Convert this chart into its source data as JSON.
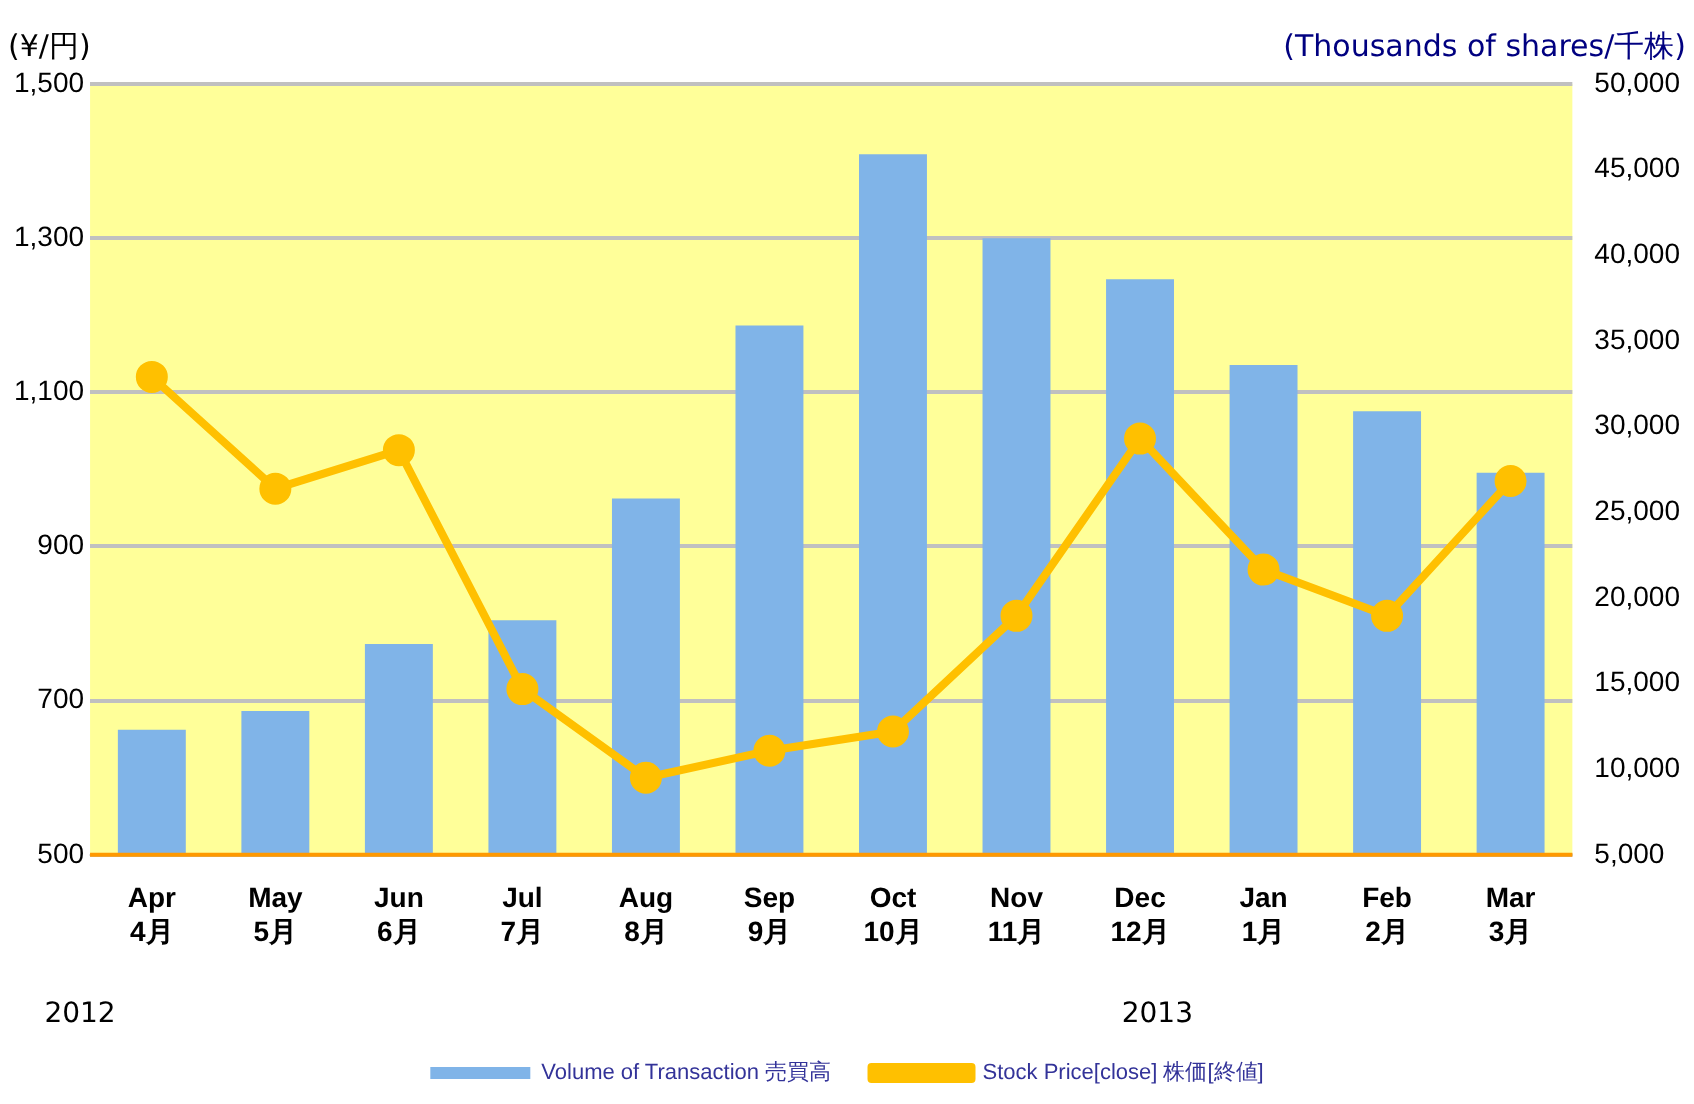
{
  "chart_data": {
    "type": "bar",
    "ylabel": "(¥/円)",
    "y2label": "(Thousands of shares/千株)",
    "categories": [
      "Apr\n4月",
      "May\n5月",
      "Jun\n6月",
      "Jul\n7月",
      "Aug\n8月",
      "Sep\n9月",
      "Oct\n10月",
      "Nov\n11月",
      "Dec\n12月",
      "Jan\n1月",
      "Feb\n2月",
      "Mar\n3月"
    ],
    "series": [
      {
        "name": "Volume of Transaction 売買高",
        "axis": "y2",
        "color": "#80b4e8",
        "values": [
          12300,
          13400,
          17300,
          18700,
          25800,
          35900,
          45900,
          41000,
          38600,
          33600,
          30900,
          27300
        ]
      },
      {
        "name": "Stock Price[close] 株価[終値]",
        "type": "line",
        "axis": "y",
        "color": "#ffc000",
        "marker": "circle",
        "values": [
          1120,
          975,
          1025,
          715,
          600,
          635,
          660,
          810,
          1040,
          870,
          810,
          985
        ]
      }
    ],
    "ylim": [
      500,
      1500
    ],
    "yticks": [
      500,
      700,
      900,
      {
        "value": 1100,
        "label": "1,100"
      },
      {
        "value": 1300,
        "label": "1,300"
      },
      {
        "value": 1500,
        "label": "1,500"
      }
    ],
    "y2lim": [
      5000,
      50000
    ],
    "y2ticks": [
      {
        "value": 5000,
        "label": "5,000"
      },
      {
        "value": 10000,
        "label": "10,000"
      },
      {
        "value": 15000,
        "label": "15,000"
      },
      {
        "value": 20000,
        "label": "20,000"
      },
      {
        "value": 25000,
        "label": "25,000"
      },
      {
        "value": 30000,
        "label": "30,000"
      },
      {
        "value": 35000,
        "label": "35,000"
      },
      {
        "value": 40000,
        "label": "40,000"
      },
      {
        "value": 45000,
        "label": "45,000"
      },
      {
        "value": 50000,
        "label": "50,000"
      }
    ],
    "grid": "y",
    "legend": "bottom",
    "annotations": [
      "2012",
      "2013"
    ]
  }
}
